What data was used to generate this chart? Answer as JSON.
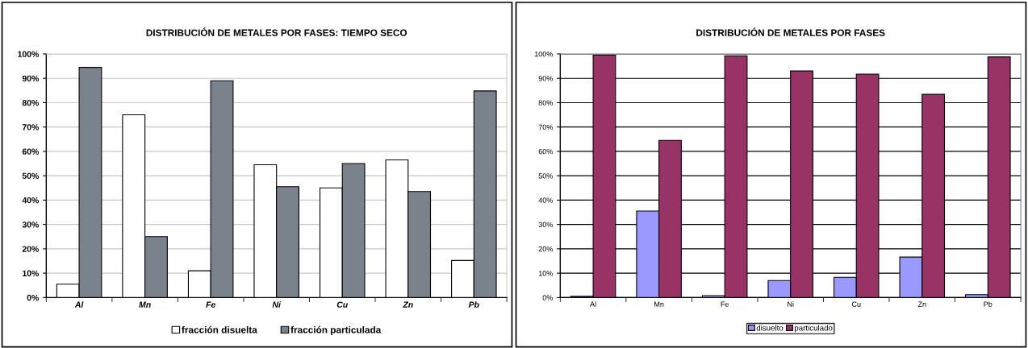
{
  "chart_data": [
    {
      "type": "bar",
      "title": "DISTRIBUCIÓN DE METALES POR FASES: TIEMPO SECO",
      "categories": [
        "Al",
        "Mn",
        "Fe",
        "Ni",
        "Cu",
        "Zn",
        "Pb"
      ],
      "series": [
        {
          "name": "fracción disuelta",
          "color": "#ffffff",
          "values": [
            5.5,
            75,
            11,
            54.5,
            45,
            56.5,
            15.2
          ]
        },
        {
          "name": "fracción particulada",
          "color": "#7a838b",
          "values": [
            94.5,
            25,
            89,
            45.5,
            55,
            43.5,
            84.8
          ]
        }
      ],
      "ylim": [
        0,
        100
      ],
      "yticks": [
        {
          "value": 0,
          "label": "0%"
        },
        {
          "value": 10,
          "label": "10%"
        },
        {
          "value": 20,
          "label": "20%"
        },
        {
          "value": 30,
          "label": "30%"
        },
        {
          "value": 40,
          "label": "40%"
        },
        {
          "value": 50,
          "label": "50%"
        },
        {
          "value": 60,
          "label": "60%"
        },
        {
          "value": 70,
          "label": "70%"
        },
        {
          "value": 80,
          "label": "80%"
        },
        {
          "value": 90,
          "label": "90%"
        },
        {
          "value": 100,
          "label": "100%"
        }
      ],
      "grid": "y",
      "legend": "bottom"
    },
    {
      "type": "bar",
      "title": "DISTRIBUCIÓN DE METALES POR FASES",
      "categories": [
        "Al",
        "Mn",
        "Fe",
        "Ni",
        "Cu",
        "Zn",
        "Pb"
      ],
      "series": [
        {
          "name": "disuelto",
          "color": "#9999ff",
          "values": [
            0.5,
            35.5,
            0.8,
            7,
            8.3,
            16.6,
            1.2
          ]
        },
        {
          "name": "particulado",
          "color": "#993366",
          "values": [
            99.5,
            64.5,
            99.2,
            93,
            91.7,
            83.4,
            98.8
          ]
        }
      ],
      "ylim": [
        0,
        100
      ],
      "yticks": [
        {
          "value": 0,
          "label": "0%"
        },
        {
          "value": 10,
          "label": "10%"
        },
        {
          "value": 20,
          "label": "20%"
        },
        {
          "value": 30,
          "label": "30%"
        },
        {
          "value": 40,
          "label": "40%"
        },
        {
          "value": 50,
          "label": "50%"
        },
        {
          "value": 60,
          "label": "60%"
        },
        {
          "value": 70,
          "label": "70%"
        },
        {
          "value": 80,
          "label": "80%"
        },
        {
          "value": 90,
          "label": "90%"
        },
        {
          "value": 100,
          "label": "100%"
        }
      ],
      "grid": "y",
      "legend": "bottom"
    }
  ]
}
